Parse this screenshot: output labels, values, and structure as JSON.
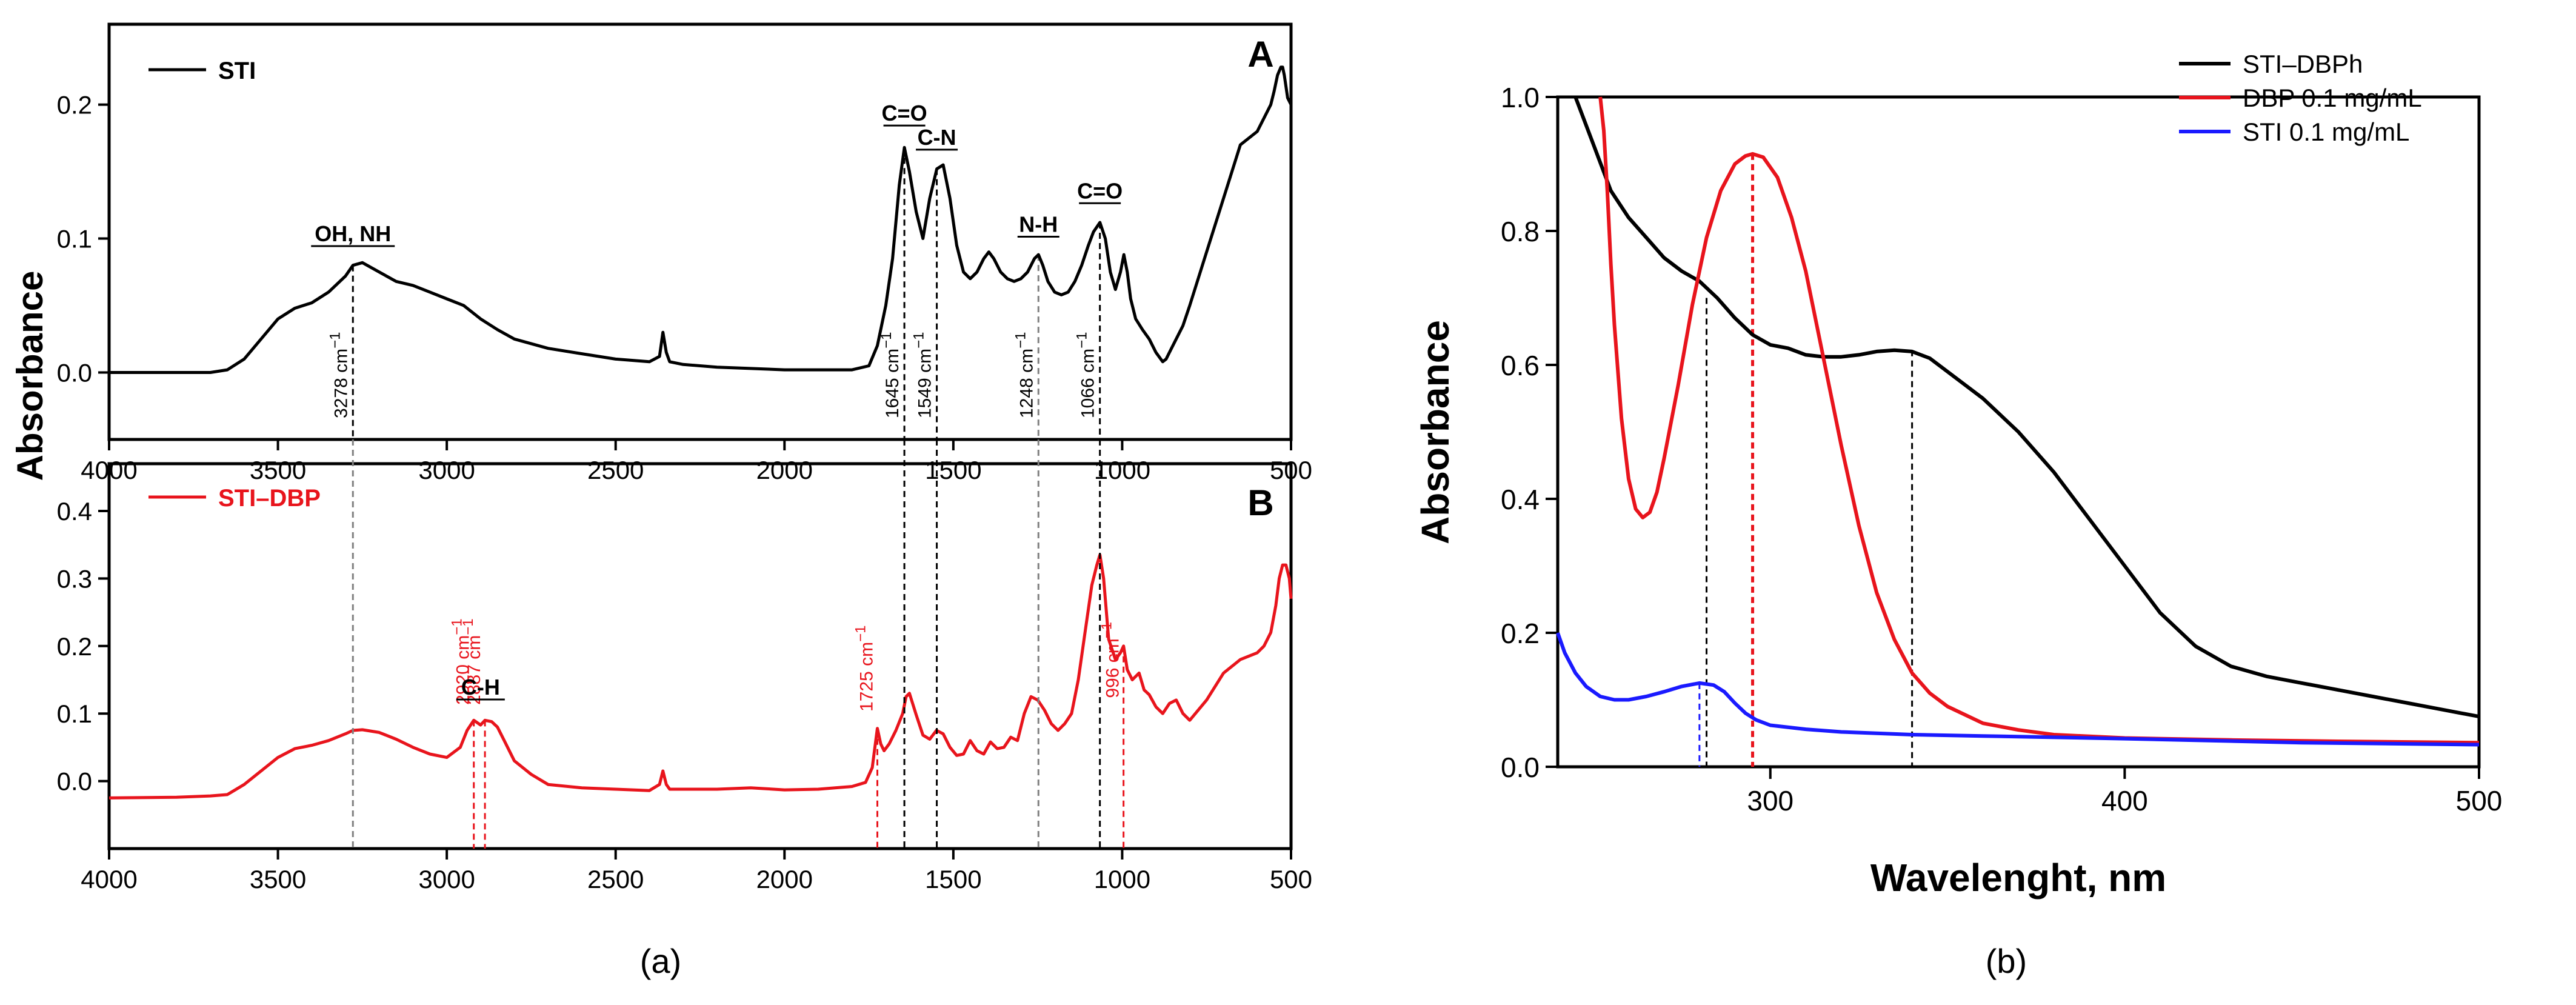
{
  "figure": {
    "panel_a_label": "(a)",
    "panel_b_label": "(b)"
  },
  "colors": {
    "black": "#000000",
    "red": "#e8141c",
    "blue": "#1a1aff",
    "guide_gray": "#808080"
  },
  "chart_data": [
    {
      "id": "ftir-A",
      "type": "line",
      "panel": "A",
      "ylabel": "Absorbance",
      "xlim": [
        4000,
        500
      ],
      "ylim": [
        -0.05,
        0.26
      ],
      "xticks": [
        4000,
        3500,
        3000,
        2500,
        2000,
        1500,
        1000,
        500
      ],
      "yticks": [
        0.0,
        0.1,
        0.2
      ],
      "ytick_labels": [
        "0.0",
        "0.1",
        "0.2"
      ],
      "legend": "top-left",
      "series": [
        {
          "name": "STI",
          "color": "#000000",
          "x": [
            4000,
            3800,
            3700,
            3650,
            3600,
            3550,
            3500,
            3450,
            3400,
            3350,
            3300,
            3278,
            3250,
            3200,
            3150,
            3100,
            3050,
            3000,
            2950,
            2900,
            2850,
            2800,
            2700,
            2600,
            2500,
            2400,
            2370,
            2360,
            2350,
            2340,
            2300,
            2200,
            2100,
            2000,
            1900,
            1800,
            1750,
            1725,
            1700,
            1680,
            1660,
            1645,
            1630,
            1610,
            1590,
            1570,
            1549,
            1530,
            1510,
            1490,
            1470,
            1450,
            1430,
            1410,
            1395,
            1380,
            1360,
            1340,
            1320,
            1300,
            1280,
            1260,
            1248,
            1235,
            1220,
            1200,
            1180,
            1160,
            1140,
            1120,
            1100,
            1085,
            1066,
            1050,
            1035,
            1020,
            1005,
            995,
            985,
            975,
            960,
            940,
            920,
            900,
            880,
            870,
            860,
            850,
            820,
            800,
            750,
            700,
            650,
            600,
            580,
            560,
            550,
            540,
            530,
            525,
            520,
            510,
            500
          ],
          "y": [
            0.0,
            0.0,
            0.0,
            0.002,
            0.01,
            0.025,
            0.04,
            0.048,
            0.052,
            0.06,
            0.072,
            0.08,
            0.082,
            0.075,
            0.068,
            0.065,
            0.06,
            0.055,
            0.05,
            0.04,
            0.032,
            0.025,
            0.018,
            0.014,
            0.01,
            0.008,
            0.012,
            0.03,
            0.015,
            0.008,
            0.006,
            0.004,
            0.003,
            0.002,
            0.002,
            0.002,
            0.005,
            0.02,
            0.05,
            0.085,
            0.14,
            0.168,
            0.15,
            0.12,
            0.1,
            0.13,
            0.152,
            0.155,
            0.13,
            0.095,
            0.075,
            0.07,
            0.075,
            0.085,
            0.09,
            0.085,
            0.075,
            0.07,
            0.068,
            0.07,
            0.075,
            0.085,
            0.088,
            0.08,
            0.068,
            0.06,
            0.058,
            0.06,
            0.068,
            0.08,
            0.095,
            0.105,
            0.112,
            0.1,
            0.075,
            0.062,
            0.075,
            0.088,
            0.075,
            0.055,
            0.04,
            0.032,
            0.025,
            0.015,
            0.008,
            0.01,
            0.015,
            0.02,
            0.035,
            0.05,
            0.09,
            0.13,
            0.17,
            0.18,
            0.19,
            0.2,
            0.21,
            0.222,
            0.228,
            0.228,
            0.222,
            0.205,
            0.2
          ]
        }
      ],
      "annotations": [
        {
          "label": "OH, NH",
          "x": 3278,
          "y": 0.098
        },
        {
          "label": "C=O",
          "x": 1645,
          "y": 0.188
        },
        {
          "label": "C-N",
          "x": 1549,
          "y": 0.17
        },
        {
          "label": "N-H",
          "x": 1248,
          "y": 0.105
        },
        {
          "label": "C=O",
          "x": 1066,
          "y": 0.13
        }
      ],
      "peak_labels": [
        {
          "label": "3278 cm",
          "sup": "−1",
          "x": 3278
        },
        {
          "label": "1645 cm",
          "sup": "−1",
          "x": 1645
        },
        {
          "label": "1549 cm",
          "sup": "−1",
          "x": 1549
        },
        {
          "label": "1248 cm",
          "sup": "−1",
          "x": 1248
        },
        {
          "label": "1066 cm",
          "sup": "−1",
          "x": 1066
        }
      ]
    },
    {
      "id": "ftir-B",
      "type": "line",
      "panel": "B",
      "ylabel": "Absorbance",
      "xlim": [
        4000,
        500
      ],
      "ylim": [
        -0.1,
        0.47
      ],
      "xticks": [
        4000,
        3500,
        3000,
        2500,
        2000,
        1500,
        1000,
        500
      ],
      "yticks": [
        0.0,
        0.1,
        0.2,
        0.3,
        0.4
      ],
      "ytick_labels": [
        "0.0",
        "0.1",
        "0.2",
        "0.3",
        "0.4"
      ],
      "legend": "top-left",
      "series": [
        {
          "name": "STI–DBP",
          "color": "#e8141c",
          "x": [
            4000,
            3800,
            3700,
            3650,
            3600,
            3550,
            3500,
            3450,
            3400,
            3350,
            3300,
            3278,
            3250,
            3200,
            3150,
            3100,
            3050,
            3000,
            2960,
            2940,
            2920,
            2900,
            2887,
            2867,
            2850,
            2830,
            2800,
            2750,
            2700,
            2600,
            2500,
            2400,
            2370,
            2360,
            2350,
            2340,
            2300,
            2200,
            2100,
            2000,
            1900,
            1800,
            1760,
            1740,
            1725,
            1715,
            1705,
            1690,
            1670,
            1650,
            1640,
            1630,
            1610,
            1590,
            1570,
            1550,
            1530,
            1510,
            1490,
            1470,
            1450,
            1430,
            1410,
            1390,
            1370,
            1350,
            1330,
            1310,
            1290,
            1270,
            1250,
            1230,
            1210,
            1190,
            1170,
            1150,
            1130,
            1110,
            1090,
            1075,
            1066,
            1055,
            1040,
            1020,
            1005,
            996,
            985,
            970,
            950,
            935,
            920,
            900,
            880,
            860,
            840,
            820,
            800,
            750,
            700,
            650,
            600,
            580,
            560,
            545,
            535,
            525,
            515,
            505,
            500
          ],
          "y": [
            -0.025,
            -0.024,
            -0.022,
            -0.02,
            -0.005,
            0.015,
            0.035,
            0.048,
            0.053,
            0.06,
            0.07,
            0.075,
            0.076,
            0.072,
            0.062,
            0.05,
            0.04,
            0.035,
            0.05,
            0.075,
            0.09,
            0.083,
            0.09,
            0.088,
            0.08,
            0.06,
            0.03,
            0.01,
            -0.005,
            -0.01,
            -0.012,
            -0.014,
            -0.005,
            0.015,
            -0.005,
            -0.012,
            -0.012,
            -0.012,
            -0.01,
            -0.013,
            -0.012,
            -0.008,
            -0.002,
            0.02,
            0.078,
            0.055,
            0.045,
            0.055,
            0.075,
            0.1,
            0.125,
            0.13,
            0.098,
            0.068,
            0.062,
            0.075,
            0.07,
            0.05,
            0.038,
            0.04,
            0.06,
            0.045,
            0.04,
            0.058,
            0.048,
            0.05,
            0.065,
            0.06,
            0.1,
            0.125,
            0.12,
            0.105,
            0.085,
            0.075,
            0.085,
            0.1,
            0.15,
            0.22,
            0.29,
            0.32,
            0.335,
            0.3,
            0.21,
            0.18,
            0.19,
            0.2,
            0.165,
            0.15,
            0.16,
            0.135,
            0.128,
            0.11,
            0.1,
            0.115,
            0.12,
            0.1,
            0.09,
            0.12,
            0.16,
            0.18,
            0.19,
            0.2,
            0.22,
            0.26,
            0.3,
            0.32,
            0.32,
            0.3,
            0.27
          ]
        }
      ],
      "annotations": [
        {
          "label": "C-H",
          "x": 2900,
          "y": 0.128
        }
      ],
      "peak_labels": [
        {
          "label": "2920 cm",
          "sup": "−1",
          "x": 2920
        },
        {
          "label": "2887 cm",
          "sup": "−1",
          "x": 2887
        },
        {
          "label": "1725 cm",
          "sup": "−1",
          "x": 1725
        },
        {
          "label": "996 cm",
          "sup": "−1",
          "x": 996
        }
      ]
    },
    {
      "id": "uvvis",
      "type": "line",
      "xlabel": "Wavelenght, nm",
      "ylabel": "Absorbance",
      "xlim": [
        240,
        500
      ],
      "ylim": [
        0.0,
        1.0
      ],
      "xticks": [
        300,
        400,
        500
      ],
      "yticks": [
        0.0,
        0.2,
        0.4,
        0.6,
        0.8,
        1.0
      ],
      "ytick_labels": [
        "0.0",
        "0.2",
        "0.4",
        "0.6",
        "0.8",
        "1.0"
      ],
      "legend": "top-right",
      "series": [
        {
          "name": "STI–DBPh",
          "color": "#000000",
          "x": [
            245,
            250,
            255,
            260,
            265,
            270,
            275,
            280,
            285,
            290,
            295,
            300,
            305,
            310,
            315,
            320,
            325,
            330,
            335,
            340,
            345,
            350,
            360,
            370,
            380,
            390,
            400,
            410,
            420,
            430,
            440,
            450,
            460,
            470,
            480,
            490,
            500
          ],
          "y": [
            1.0,
            0.93,
            0.86,
            0.82,
            0.79,
            0.76,
            0.74,
            0.725,
            0.7,
            0.67,
            0.645,
            0.63,
            0.625,
            0.615,
            0.612,
            0.612,
            0.615,
            0.62,
            0.622,
            0.62,
            0.61,
            0.59,
            0.55,
            0.5,
            0.44,
            0.37,
            0.3,
            0.23,
            0.18,
            0.15,
            0.135,
            0.125,
            0.115,
            0.105,
            0.095,
            0.085,
            0.075
          ]
        },
        {
          "name": "DBP 0.1 mg/mL",
          "color": "#e8141c",
          "x": [
            252,
            253,
            254,
            255,
            256,
            258,
            260,
            262,
            264,
            266,
            268,
            270,
            274,
            278,
            282,
            286,
            290,
            293,
            295,
            298,
            302,
            306,
            310,
            315,
            320,
            325,
            330,
            335,
            340,
            345,
            350,
            360,
            370,
            380,
            400,
            430,
            460,
            500
          ],
          "y": [
            1.0,
            0.95,
            0.86,
            0.75,
            0.66,
            0.52,
            0.43,
            0.385,
            0.372,
            0.38,
            0.41,
            0.46,
            0.57,
            0.69,
            0.79,
            0.86,
            0.9,
            0.912,
            0.915,
            0.91,
            0.88,
            0.82,
            0.74,
            0.61,
            0.48,
            0.36,
            0.26,
            0.19,
            0.14,
            0.11,
            0.09,
            0.065,
            0.055,
            0.048,
            0.043,
            0.04,
            0.038,
            0.036
          ]
        },
        {
          "name": "STI 0.1 mg/mL",
          "color": "#1a1aff",
          "x": [
            240,
            242,
            245,
            248,
            252,
            256,
            260,
            265,
            270,
            275,
            280,
            284,
            287,
            290,
            293,
            296,
            300,
            310,
            320,
            340,
            360,
            400,
            450,
            500
          ],
          "y": [
            0.2,
            0.17,
            0.14,
            0.12,
            0.105,
            0.1,
            0.1,
            0.105,
            0.112,
            0.12,
            0.125,
            0.122,
            0.112,
            0.095,
            0.08,
            0.07,
            0.062,
            0.056,
            0.052,
            0.048,
            0.046,
            0.042,
            0.036,
            0.033
          ]
        }
      ],
      "guide_lines": [
        {
          "x": 280,
          "y": 0.125,
          "color": "#1a1aff"
        },
        {
          "x": 282,
          "y": 0.7,
          "color": "#000000"
        },
        {
          "x": 295,
          "y": 0.915,
          "color": "#e8141c"
        },
        {
          "x": 340,
          "y": 0.622,
          "color": "#000000"
        }
      ]
    }
  ]
}
